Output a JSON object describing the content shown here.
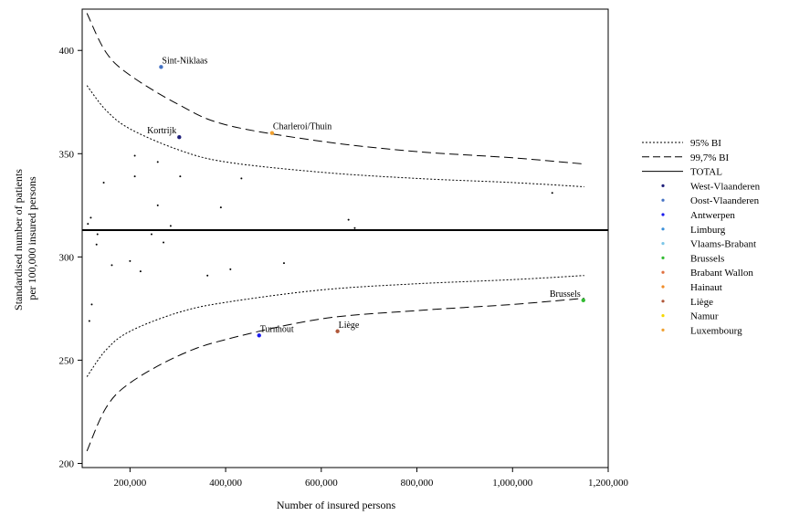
{
  "chart_data": {
    "type": "scatter",
    "title": "",
    "xlabel": "Number of insured persons",
    "ylabel_lines": [
      "Standardised number of patients",
      "per 100,000 insured persons"
    ],
    "xlim": [
      100000,
      1200000
    ],
    "ylim": [
      198,
      420
    ],
    "xticks": [
      200000,
      400000,
      600000,
      800000,
      1000000,
      1200000
    ],
    "xtick_labels": [
      "200,000",
      "400,000",
      "600,000",
      "800,000",
      "1,000,000",
      "1,200,000"
    ],
    "yticks": [
      200,
      250,
      300,
      350,
      400
    ],
    "ytick_labels": [
      "200",
      "250",
      "300",
      "350",
      "400"
    ],
    "grid": false,
    "legend_position": "right",
    "total_line": 313,
    "ci_95_upper": [
      [
        110000,
        383
      ],
      [
        150000,
        371
      ],
      [
        200000,
        362
      ],
      [
        300000,
        352
      ],
      [
        400000,
        346
      ],
      [
        600000,
        341
      ],
      [
        800000,
        338
      ],
      [
        1000000,
        336
      ],
      [
        1150000,
        334
      ]
    ],
    "ci_95_lower": [
      [
        110000,
        242
      ],
      [
        150000,
        255
      ],
      [
        200000,
        264
      ],
      [
        300000,
        273
      ],
      [
        400000,
        278
      ],
      [
        600000,
        284
      ],
      [
        800000,
        287
      ],
      [
        1000000,
        289
      ],
      [
        1150000,
        291
      ]
    ],
    "ci_997_upper": [
      [
        110000,
        418
      ],
      [
        150000,
        399
      ],
      [
        200000,
        388
      ],
      [
        300000,
        374
      ],
      [
        400000,
        364
      ],
      [
        600000,
        356
      ],
      [
        800000,
        351
      ],
      [
        1000000,
        348
      ],
      [
        1150000,
        345
      ]
    ],
    "ci_997_lower": [
      [
        110000,
        206
      ],
      [
        150000,
        227
      ],
      [
        200000,
        239
      ],
      [
        300000,
        252
      ],
      [
        400000,
        260
      ],
      [
        600000,
        270
      ],
      [
        800000,
        274
      ],
      [
        1000000,
        277
      ],
      [
        1150000,
        280
      ]
    ],
    "highlighted_points": [
      {
        "name": "Sint-Niklaas",
        "x": 265000,
        "y": 392,
        "color": "#4472c4",
        "label_side": "right"
      },
      {
        "name": "Kortrijk",
        "x": 303000,
        "y": 358,
        "color": "#1f1f7a",
        "label_side": "left"
      },
      {
        "name": "Charleroi/Thuin",
        "x": 497000,
        "y": 360,
        "color": "#f0a030",
        "label_side": "right"
      },
      {
        "name": "Brussels",
        "x": 1148000,
        "y": 279,
        "color": "#33bb33",
        "label_side": "left"
      },
      {
        "name": "Turnhout",
        "x": 470000,
        "y": 262,
        "color": "#1a1aee",
        "label_side": "right"
      },
      {
        "name": "Liège",
        "x": 634000,
        "y": 264,
        "color": "#b0583a",
        "label_side": "right"
      }
    ],
    "other_points": [
      [
        210000,
        349
      ],
      [
        258000,
        346
      ],
      [
        145000,
        336
      ],
      [
        210000,
        339
      ],
      [
        305000,
        339
      ],
      [
        433000,
        338
      ],
      [
        258000,
        325
      ],
      [
        390000,
        324
      ],
      [
        1083000,
        331
      ],
      [
        118000,
        319
      ],
      [
        112000,
        316
      ],
      [
        285000,
        315
      ],
      [
        657000,
        318
      ],
      [
        670000,
        314
      ],
      [
        132000,
        311
      ],
      [
        245000,
        311
      ],
      [
        130000,
        306
      ],
      [
        270000,
        307
      ],
      [
        162000,
        296
      ],
      [
        200000,
        298
      ],
      [
        222000,
        293
      ],
      [
        362000,
        291
      ],
      [
        410000,
        294
      ],
      [
        522000,
        297
      ],
      [
        120000,
        277
      ],
      [
        115000,
        269
      ]
    ],
    "legend": [
      {
        "label": "95% BI",
        "kind": "dotted"
      },
      {
        "label": "99,7% BI",
        "kind": "dashed"
      },
      {
        "label": "TOTAL",
        "kind": "solid"
      },
      {
        "label": "West-Vlaanderen",
        "kind": "dot",
        "color": "#1f1f7a"
      },
      {
        "label": "Oost-Vlaanderen",
        "kind": "dot",
        "color": "#4472c4"
      },
      {
        "label": "Antwerpen",
        "kind": "dot",
        "color": "#1a1aee"
      },
      {
        "label": "Limburg",
        "kind": "dot",
        "color": "#3a8fd8"
      },
      {
        "label": "Vlaams-Brabant",
        "kind": "dot",
        "color": "#7cc6e8"
      },
      {
        "label": "Brussels",
        "kind": "dot",
        "color": "#33bb33"
      },
      {
        "label": "Brabant Wallon",
        "kind": "dot",
        "color": "#e07040"
      },
      {
        "label": "Hainaut",
        "kind": "dot",
        "color": "#f08c28"
      },
      {
        "label": "Liège",
        "kind": "dot",
        "color": "#b0583a"
      },
      {
        "label": "Namur",
        "kind": "dot",
        "color": "#f5d800"
      },
      {
        "label": "Luxembourg",
        "kind": "dot",
        "color": "#f0a030"
      }
    ]
  }
}
